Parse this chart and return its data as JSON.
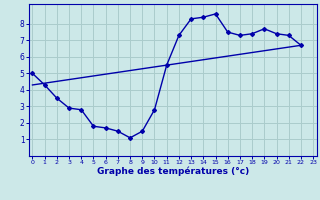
{
  "xlabel": "Graphe des températures (°c)",
  "background_color": "#cce8e8",
  "grid_color": "#aacccc",
  "line_color": "#0000aa",
  "hours": [
    0,
    1,
    2,
    3,
    4,
    5,
    6,
    7,
    8,
    9,
    10,
    11,
    12,
    13,
    14,
    15,
    16,
    17,
    18,
    19,
    20,
    21,
    22
  ],
  "temps": [
    5.0,
    4.3,
    3.5,
    2.9,
    2.8,
    1.8,
    1.7,
    1.5,
    1.1,
    1.5,
    2.8,
    5.5,
    7.3,
    8.3,
    8.4,
    8.6,
    7.5,
    7.3,
    7.4,
    7.7,
    7.4,
    7.3,
    6.7
  ],
  "trend_x": [
    0,
    22
  ],
  "trend_y": [
    4.3,
    6.7
  ],
  "xlim": [
    -0.3,
    23.3
  ],
  "ylim": [
    0,
    9.2
  ],
  "yticks": [
    1,
    2,
    3,
    4,
    5,
    6,
    7,
    8
  ],
  "xticks": [
    0,
    1,
    2,
    3,
    4,
    5,
    6,
    7,
    8,
    9,
    10,
    11,
    12,
    13,
    14,
    15,
    16,
    17,
    18,
    19,
    20,
    21,
    22,
    23
  ]
}
